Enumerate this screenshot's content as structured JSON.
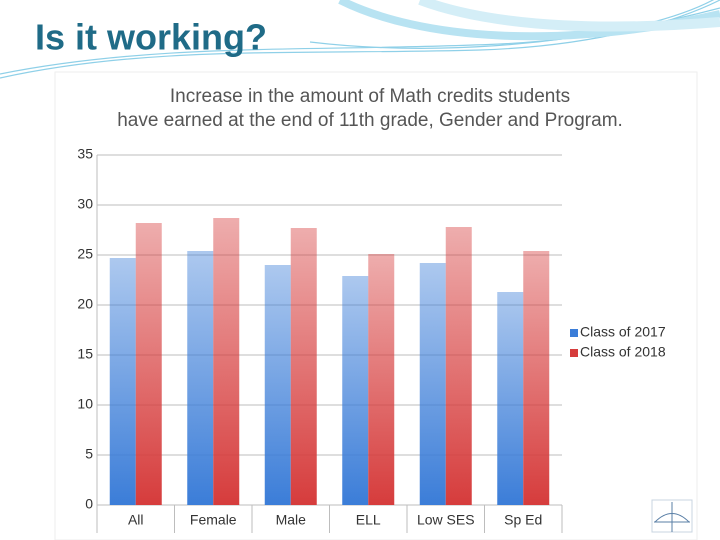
{
  "slide_title": "Is it working?",
  "chart_data": {
    "type": "bar",
    "title": "Increase in the amount of Math credits students have earned at the end of 11th grade, Gender and Program.",
    "categories": [
      "All",
      "Female",
      "Male",
      "ELL",
      "Low SES",
      "Sp Ed"
    ],
    "series": [
      {
        "name": "Class of 2017",
        "color": "#3b7dd8",
        "values": [
          24.7,
          25.4,
          24.0,
          22.9,
          24.2,
          21.3
        ]
      },
      {
        "name": "Class of 2018",
        "color": "#d63c3c",
        "values": [
          28.2,
          28.7,
          27.7,
          25.1,
          27.8,
          25.4
        ]
      }
    ],
    "ylim": [
      0,
      35
    ],
    "yticks": [
      0,
      5,
      10,
      15,
      20,
      25,
      30,
      35
    ],
    "grid": true,
    "legend": "right"
  }
}
